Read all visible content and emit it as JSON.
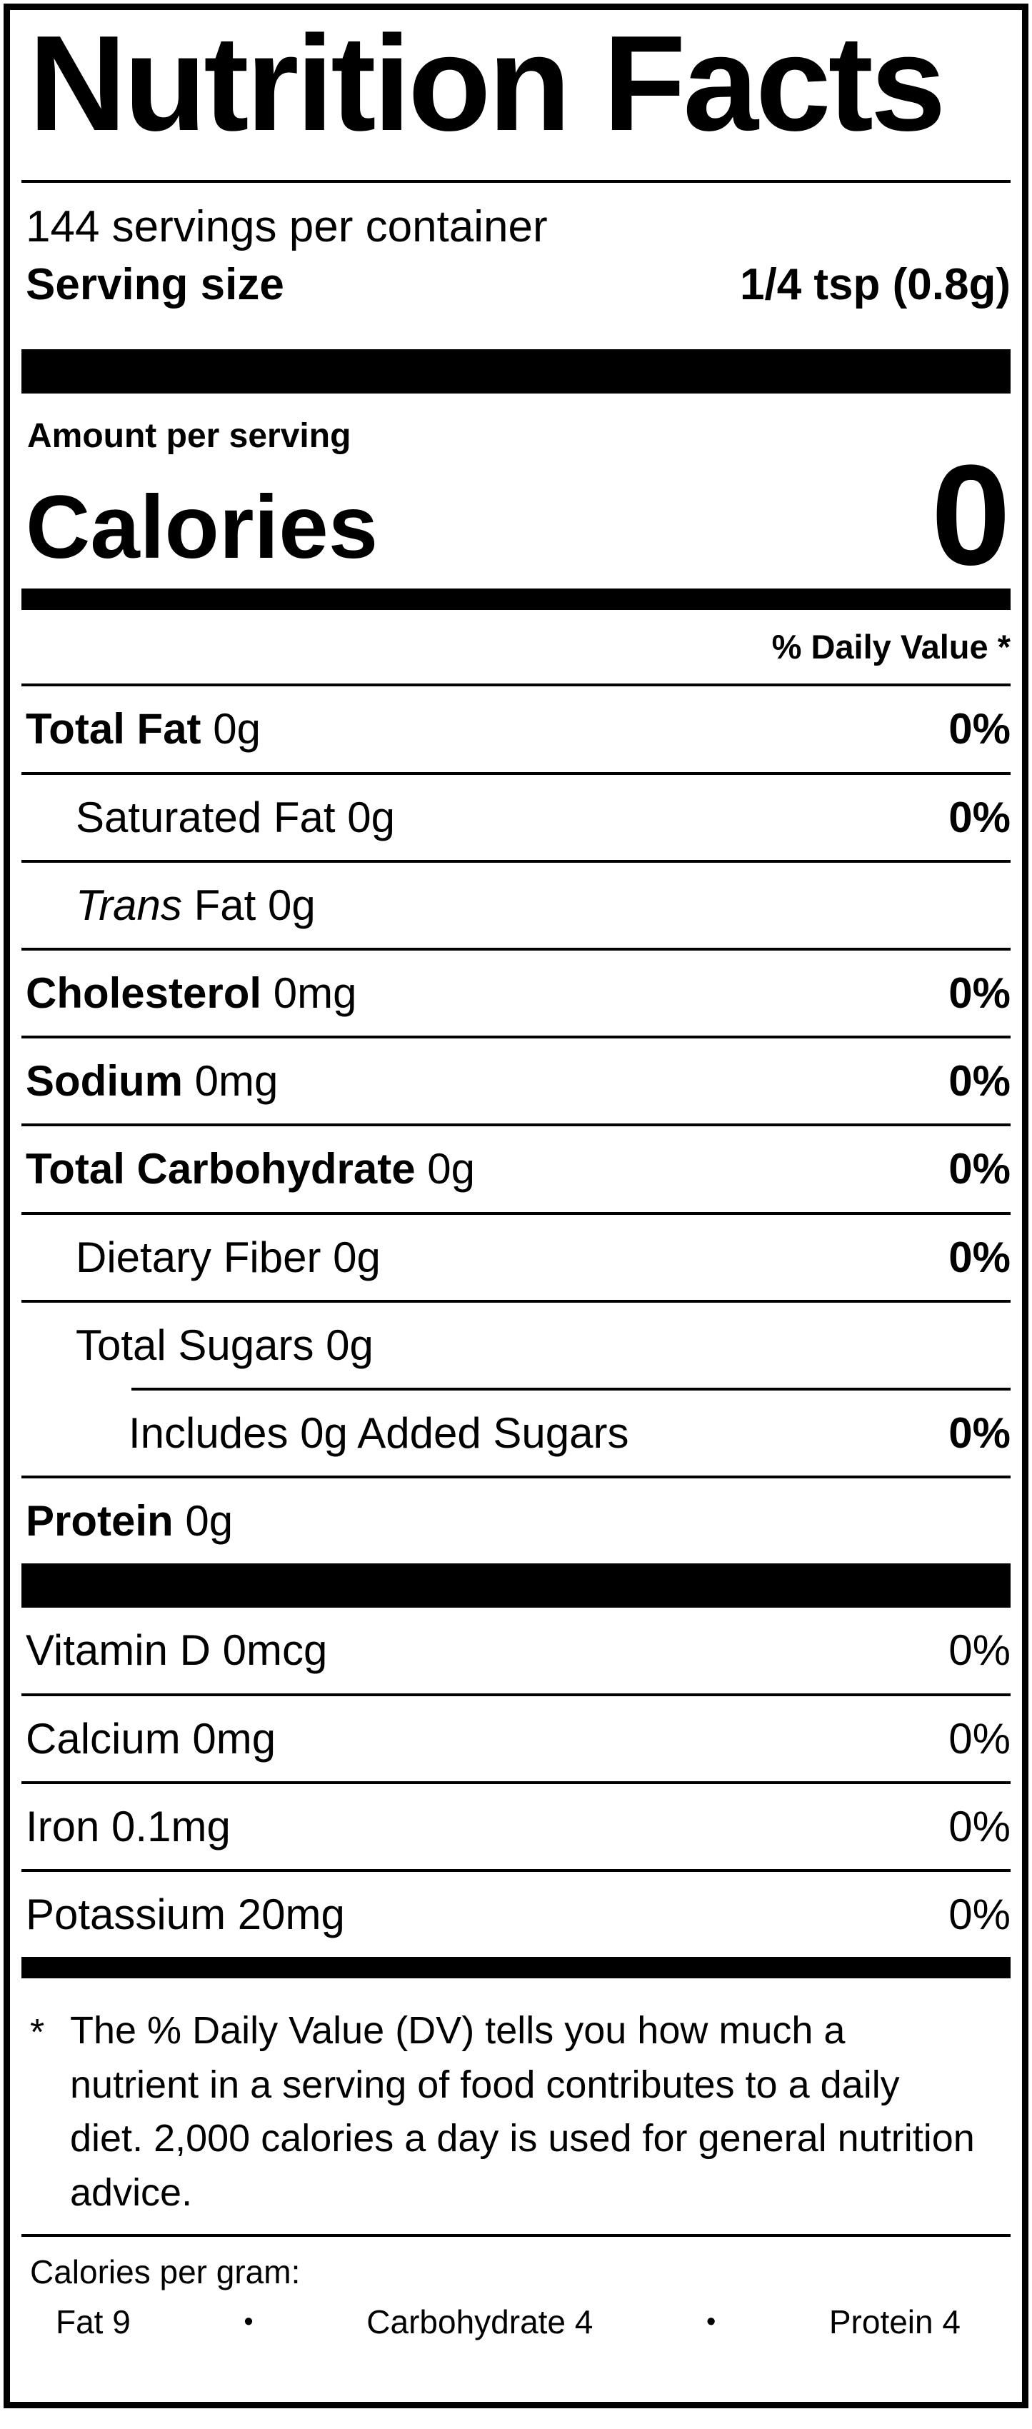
{
  "label": {
    "title": "Nutrition Facts",
    "servings_per_container": "144 servings per container",
    "serving_size": {
      "label": "Serving size",
      "value": "1/4 tsp (0.8g)"
    },
    "amount_per_serving": "Amount per serving",
    "calories": {
      "label": "Calories",
      "value": "0"
    },
    "daily_value_header": "% Daily Value *",
    "rows": [
      {
        "name": "total-fat",
        "parts": [
          {
            "t": "Total Fat",
            "s": "b"
          },
          {
            "t": " 0g",
            "s": "r"
          }
        ],
        "pct": "0%",
        "pct_bold": true,
        "indent": 0,
        "rule": "full"
      },
      {
        "name": "saturated-fat",
        "parts": [
          {
            "t": "Saturated Fat 0g",
            "s": "r"
          }
        ],
        "pct": "0%",
        "pct_bold": true,
        "indent": 1,
        "rule": "full"
      },
      {
        "name": "trans-fat",
        "parts": [
          {
            "t": "Trans",
            "s": "i"
          },
          {
            "t": " Fat 0g",
            "s": "r"
          }
        ],
        "pct": "",
        "pct_bold": false,
        "indent": 1,
        "rule": "full"
      },
      {
        "name": "cholesterol",
        "parts": [
          {
            "t": "Cholesterol",
            "s": "b"
          },
          {
            "t": " 0mg",
            "s": "r"
          }
        ],
        "pct": "0%",
        "pct_bold": true,
        "indent": 0,
        "rule": "full"
      },
      {
        "name": "sodium",
        "parts": [
          {
            "t": "Sodium",
            "s": "b"
          },
          {
            "t": " 0mg",
            "s": "r"
          }
        ],
        "pct": "0%",
        "pct_bold": true,
        "indent": 0,
        "rule": "full"
      },
      {
        "name": "total-carbohydrate",
        "parts": [
          {
            "t": "Total Carbohydrate",
            "s": "b"
          },
          {
            "t": " 0g",
            "s": "r"
          }
        ],
        "pct": "0%",
        "pct_bold": true,
        "indent": 0,
        "rule": "full"
      },
      {
        "name": "dietary-fiber",
        "parts": [
          {
            "t": "Dietary Fiber 0g",
            "s": "r"
          }
        ],
        "pct": "0%",
        "pct_bold": true,
        "indent": 1,
        "rule": "full"
      },
      {
        "name": "total-sugars",
        "parts": [
          {
            "t": "Total Sugars 0g",
            "s": "r"
          }
        ],
        "pct": "",
        "pct_bold": false,
        "indent": 1,
        "rule": "indent2"
      },
      {
        "name": "added-sugars",
        "parts": [
          {
            "t": "Includes 0g Added Sugars",
            "s": "r"
          }
        ],
        "pct": "0%",
        "pct_bold": true,
        "indent": 2,
        "rule": "full"
      },
      {
        "name": "protein",
        "parts": [
          {
            "t": "Protein",
            "s": "b"
          },
          {
            "t": " 0g",
            "s": "r"
          }
        ],
        "pct": "",
        "pct_bold": false,
        "indent": 0,
        "rule": "none"
      }
    ],
    "micronutrients": [
      {
        "name": "vitamin-d",
        "parts": [
          {
            "t": "Vitamin D 0mcg",
            "s": "r"
          }
        ],
        "pct": "0%",
        "pct_bold": false,
        "indent": 0,
        "rule": "full"
      },
      {
        "name": "calcium",
        "parts": [
          {
            "t": "Calcium 0mg",
            "s": "r"
          }
        ],
        "pct": "0%",
        "pct_bold": false,
        "indent": 0,
        "rule": "full"
      },
      {
        "name": "iron",
        "parts": [
          {
            "t": "Iron 0.1mg",
            "s": "r"
          }
        ],
        "pct": "0%",
        "pct_bold": false,
        "indent": 0,
        "rule": "full"
      },
      {
        "name": "potassium",
        "parts": [
          {
            "t": "Potassium 20mg",
            "s": "r"
          }
        ],
        "pct": "0%",
        "pct_bold": false,
        "indent": 0,
        "rule": "none"
      }
    ],
    "footnote": {
      "asterisk": "*",
      "text": "The % Daily Value (DV) tells you how much a nutrient in a serving of food contributes to a daily diet. 2,000 calories a day is used for general nutrition advice."
    },
    "calories_per_gram": {
      "label": "Calories per gram:",
      "bullet": "•",
      "items": [
        "Fat 9",
        "Carbohydrate 4",
        "Protein 4"
      ]
    }
  }
}
